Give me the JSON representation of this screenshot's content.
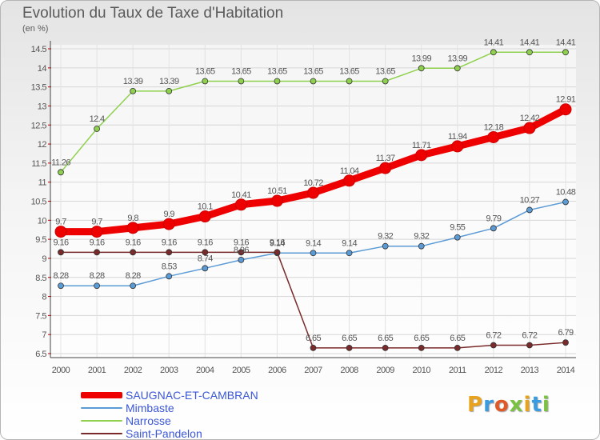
{
  "chart": {
    "title": "Evolution du Taux de Taxe d'Habitation",
    "unit": "(en %)"
  },
  "logo": {
    "text": "Proxiti",
    "colors": [
      "#e8a21c",
      "#3a9be0",
      "#e05a28",
      "#7cc242",
      "#e8a21c",
      "#3a9be0",
      "#7cc242"
    ]
  },
  "chart_data": {
    "type": "line",
    "title": "Evolution du Taux de Taxe d'Habitation",
    "ylabel": "(en %)",
    "xlabel": "",
    "ylim": [
      6.5,
      14.5
    ],
    "yticks": [
      6.5,
      7,
      7.5,
      8,
      8.5,
      9,
      9.5,
      10,
      10.5,
      11,
      11.5,
      12,
      12.5,
      13,
      13.5,
      14,
      14.5
    ],
    "ytick_labels": [
      "6.5",
      "7",
      "7.5",
      "8",
      "8.5",
      "9",
      "9.5",
      "10",
      "10.5",
      "11",
      "11.5",
      "12",
      "12.5",
      "13",
      "13.5",
      "14",
      "14.5"
    ],
    "x": [
      "2000",
      "2001",
      "2002",
      "2003",
      "2004",
      "2005",
      "2006",
      "2007",
      "2008",
      "2009",
      "2010",
      "2011",
      "2012",
      "2013",
      "2014"
    ],
    "grid": true,
    "legend": "bottom-left",
    "series": [
      {
        "name": "SAUGNAC-ET-CAMBRAN",
        "color": "#ee0000",
        "emphasis": true,
        "values": [
          9.7,
          9.7,
          9.8,
          9.9,
          10.1,
          10.41,
          10.51,
          10.72,
          11.04,
          11.37,
          11.71,
          11.94,
          12.18,
          12.42,
          12.91
        ],
        "labels": [
          "9.7",
          "9.7",
          "9.8",
          "9.9",
          "10.1",
          "10.41",
          "10.51",
          "10.72",
          "11.04",
          "11.37",
          "11.71",
          "11.94",
          "12.18",
          "12.42",
          "12.91"
        ]
      },
      {
        "name": "Mimbaste",
        "color": "#5b9bd5",
        "emphasis": false,
        "values": [
          8.28,
          8.28,
          8.28,
          8.53,
          8.74,
          8.96,
          9.14,
          9.14,
          9.14,
          9.32,
          9.32,
          9.55,
          9.79,
          10.27,
          10.48
        ],
        "labels": [
          "8.28",
          "8.28",
          "8.28",
          "8.53",
          "8.74",
          "8.96",
          "9.14",
          "9.14",
          "9.14",
          "9.32",
          "9.32",
          "9.55",
          "9.79",
          "10.27",
          "10.48"
        ]
      },
      {
        "name": "Narrosse",
        "color": "#8fd14f",
        "emphasis": false,
        "values": [
          11.26,
          12.4,
          13.39,
          13.39,
          13.65,
          13.65,
          13.65,
          13.65,
          13.65,
          13.65,
          13.99,
          13.99,
          14.41,
          14.41,
          14.41
        ],
        "labels": [
          "11.26",
          "12.4",
          "13.39",
          "13.39",
          "13.65",
          "13.65",
          "13.65",
          "13.65",
          "13.65",
          "13.65",
          "13.99",
          "13.99",
          "14.41",
          "14.41",
          "14.41"
        ]
      },
      {
        "name": "Saint-Pandelon",
        "color": "#7a2a2a",
        "emphasis": false,
        "values": [
          9.16,
          9.16,
          9.16,
          9.16,
          9.16,
          9.16,
          9.16,
          6.65,
          6.65,
          6.65,
          6.65,
          6.65,
          6.72,
          6.72,
          6.79
        ],
        "labels": [
          "9.16",
          "9.16",
          "9.16",
          "9.16",
          "9.16",
          "9.16",
          "9.16",
          "6.65",
          "6.65",
          "6.65",
          "6.65",
          "6.65",
          "6.72",
          "6.72",
          "6.79"
        ]
      }
    ]
  }
}
